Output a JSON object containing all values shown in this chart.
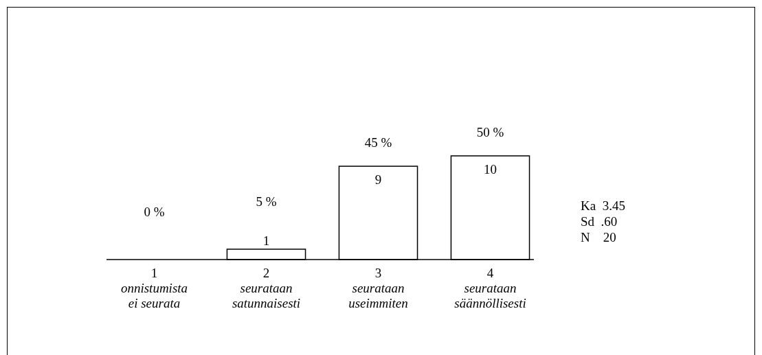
{
  "chart_data": {
    "type": "bar",
    "categories": [
      "1\nonnistumista\nei seurata",
      "2\nseurataan\nsatunnaisesti",
      "3\nseurataan\nuseimmiten",
      "4\nseurataan\nsäännöllisesti"
    ],
    "values": [
      0,
      1,
      9,
      10
    ],
    "value_labels": [
      null,
      "1",
      "9",
      "10"
    ],
    "color": "#ffffff",
    "annotations": [
      "0 %",
      "5 %",
      "45 %",
      "50 %",
      "Ka  3.45",
      "Sd  .60",
      "N    20"
    ]
  }
}
